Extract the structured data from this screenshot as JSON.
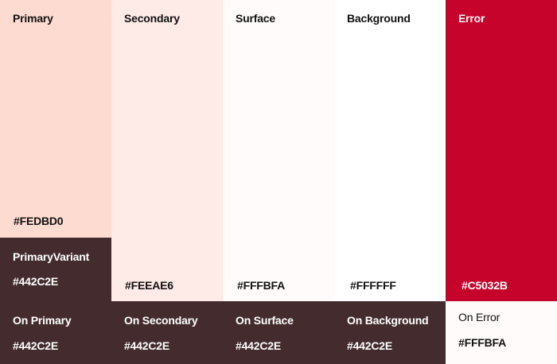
{
  "primary": {
    "label": "Primary",
    "hex": "#FEDBD0",
    "color": "#FEDBD0"
  },
  "primary_variant": {
    "label": "PrimaryVariant",
    "hex": "#442C2E",
    "color": "#442C2E"
  },
  "secondary": {
    "label": "Secondary",
    "hex": "#FEEAE6",
    "color": "#FEEAE6"
  },
  "surface": {
    "label": "Surface",
    "hex": "#FFFBFA",
    "color": "#FFFBFA"
  },
  "background": {
    "label": "Background",
    "hex": "#FFFFFF",
    "color": "#FFFFFF"
  },
  "error": {
    "label": "Error",
    "hex": "#C5032B",
    "color": "#C5032B"
  },
  "on_primary": {
    "label": "On Primary",
    "hex": "#442C2E"
  },
  "on_secondary": {
    "label": "On Secondary",
    "hex": "#442C2E"
  },
  "on_surface": {
    "label": "On Surface",
    "hex": "#442C2E"
  },
  "on_background": {
    "label": "On Background",
    "hex": "#442C2E"
  },
  "on_error": {
    "label": "On Error",
    "hex": "#FFFBFA"
  }
}
